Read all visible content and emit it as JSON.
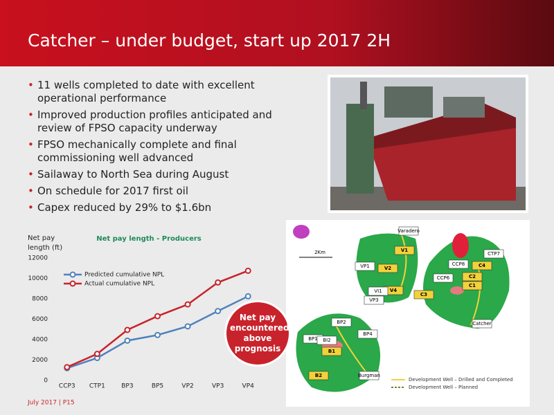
{
  "header": {
    "title": "Catcher – under budget, start up 2017 2H"
  },
  "bullets": [
    "11 wells completed to date with excellent operational performance",
    "Improved production profiles anticipated and review of FPSO capacity underway",
    "FPSO mechanically complete and final commissioning well advanced",
    "Sailaway to North Sea during August",
    "On schedule for 2017 first oil",
    "Capex reduced by 29% to $1.6bn"
  ],
  "chart_data": {
    "type": "line",
    "title": "Net pay length - Producers",
    "y_label": "Net pay length (ft)",
    "categories": [
      "CCP3",
      "CTP1",
      "BP3",
      "BP5",
      "VP2",
      "VP3",
      "VP4"
    ],
    "series": [
      {
        "name": "Predicted cumulative NPL",
        "color": "#4f81bd",
        "values": [
          1200,
          2200,
          3900,
          4450,
          5300,
          6800,
          8250
        ]
      },
      {
        "name": "Actual cumulative NPL",
        "color": "#c8232c",
        "values": [
          1300,
          2600,
          4950,
          6300,
          7450,
          9600,
          10750
        ]
      }
    ],
    "ylim": [
      0,
      12000
    ],
    "yticks": [
      0,
      2000,
      4000,
      6000,
      8000,
      10000,
      12000
    ],
    "grid": false,
    "legend": "top-left"
  },
  "callout": "Net pay encountered above prognosis",
  "map": {
    "labels": [
      "Varadero",
      "2Km",
      "V1",
      "V2",
      "V4",
      "VP1",
      "VI1",
      "VP3",
      "CTP7",
      "CCP8",
      "C4",
      "C2",
      "C1",
      "CCP6",
      "C3",
      "Catcher",
      "BP2",
      "BP4",
      "BP1",
      "BI2",
      "B1",
      "B2",
      "Burgman"
    ],
    "legend": [
      "Development Well – Drilled and Completed",
      "Development Well – Planned"
    ]
  },
  "footer": "July 2017 | P15"
}
